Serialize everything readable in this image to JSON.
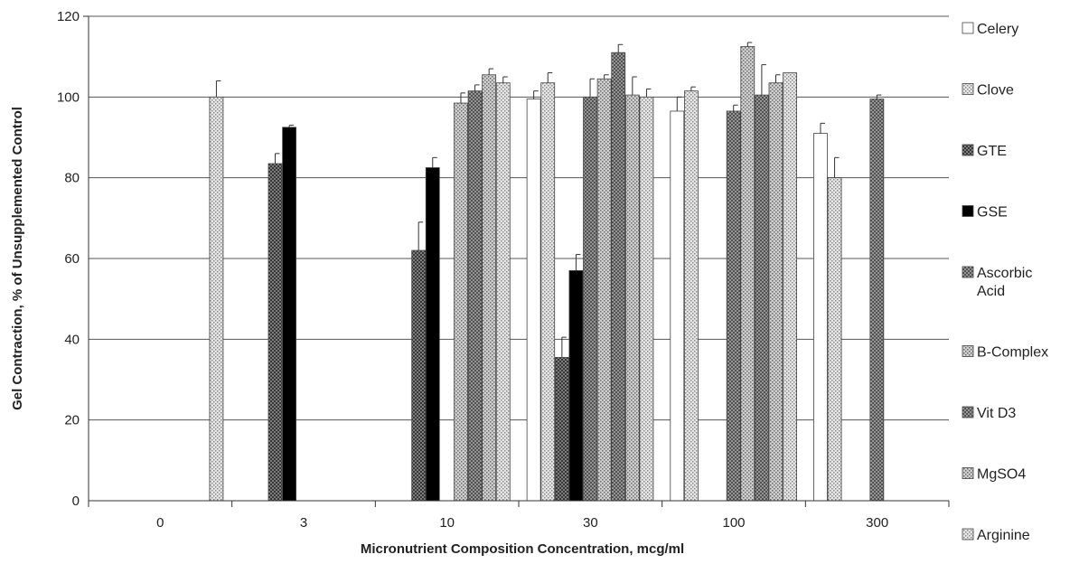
{
  "chart_data": {
    "type": "bar",
    "title": "",
    "xlabel": "Micronutrient Composition Concentration, mcg/ml",
    "ylabel": "Gel Contraction, % of Unsupplemented Control",
    "ylim": [
      0,
      120
    ],
    "yticks": [
      0,
      20,
      40,
      60,
      80,
      100,
      120
    ],
    "grid": true,
    "legend_position": "right",
    "categories": [
      "0",
      "3",
      "10",
      "30",
      "100",
      "300"
    ],
    "series": [
      {
        "name": "Celery",
        "color": "#ffffff",
        "pattern": "none",
        "values": [
          null,
          null,
          null,
          99.5,
          96.5,
          91
        ],
        "errors": [
          null,
          null,
          null,
          2,
          3.5,
          2.5
        ]
      },
      {
        "name": "Clove",
        "color": "#c8c8c8",
        "pattern": "dots",
        "values": [
          null,
          null,
          null,
          103.5,
          101.5,
          80
        ],
        "errors": [
          null,
          null,
          null,
          2.5,
          1,
          5
        ]
      },
      {
        "name": "GTE",
        "color": "#6e6e6e",
        "pattern": "cross",
        "values": [
          null,
          83.5,
          62,
          35.5,
          null,
          null
        ],
        "errors": [
          null,
          2.5,
          7,
          5,
          null,
          null
        ]
      },
      {
        "name": "GSE",
        "color": "#000000",
        "pattern": "none",
        "values": [
          null,
          92.5,
          82.5,
          57,
          null,
          null
        ],
        "errors": [
          null,
          0.5,
          2.5,
          4,
          null,
          null
        ]
      },
      {
        "name": "Ascorbic Acid",
        "color": "#7a7a7a",
        "pattern": "cross",
        "values": [
          null,
          null,
          null,
          100,
          96.5,
          99.5
        ],
        "errors": [
          null,
          null,
          null,
          4.5,
          1.5,
          1
        ]
      },
      {
        "name": "B-Complex",
        "color": "#b4b4b4",
        "pattern": "dots",
        "values": [
          null,
          null,
          98.5,
          104.5,
          112.5,
          null
        ],
        "errors": [
          null,
          null,
          2.5,
          1,
          1,
          null
        ]
      },
      {
        "name": "Vit D3",
        "color": "#8c8c8c",
        "pattern": "cross",
        "values": [
          null,
          null,
          101.5,
          111,
          100.5,
          null
        ],
        "errors": [
          null,
          null,
          1.5,
          2,
          7.5,
          null
        ]
      },
      {
        "name": "MgSO4",
        "color": "#aaaaaa",
        "pattern": "dots",
        "values": [
          null,
          null,
          105.5,
          100.5,
          103.5,
          null
        ],
        "errors": [
          null,
          null,
          1.5,
          4.5,
          2,
          null
        ]
      },
      {
        "name": "Arginine",
        "color": "#dcdcdc",
        "pattern": "dots",
        "values": [
          100,
          null,
          103.5,
          100,
          106,
          null
        ],
        "errors": [
          4,
          null,
          1.5,
          2,
          null,
          null
        ]
      }
    ]
  }
}
